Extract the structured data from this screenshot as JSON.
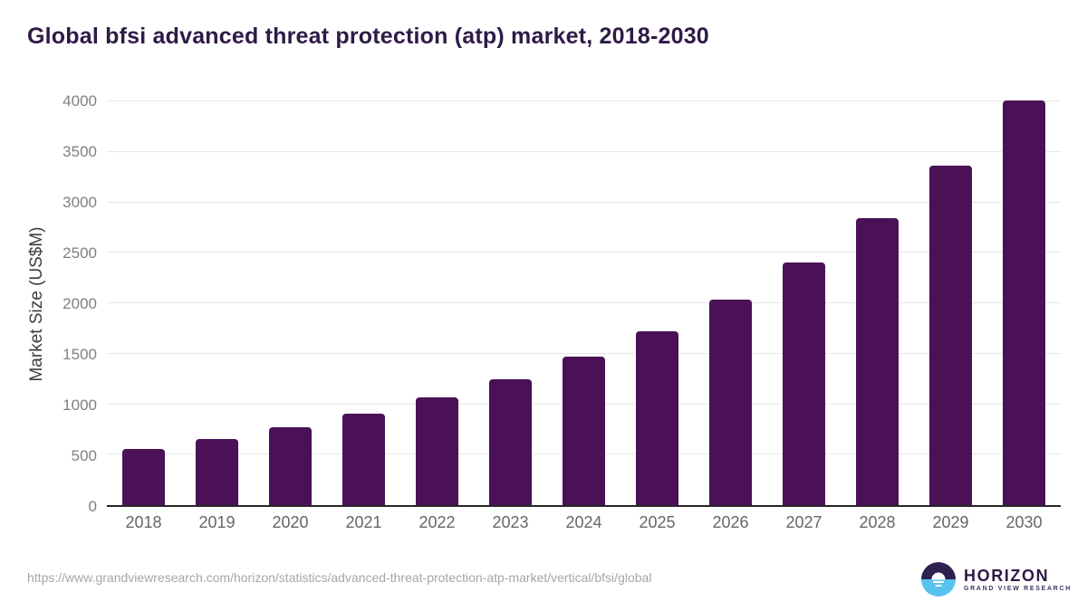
{
  "title": "Global bfsi advanced threat protection (atp) market, 2018-2030",
  "chart_data": {
    "type": "bar",
    "title": "Global bfsi advanced threat protection (atp) market, 2018-2030",
    "categories": [
      "2018",
      "2019",
      "2020",
      "2021",
      "2022",
      "2023",
      "2024",
      "2025",
      "2026",
      "2027",
      "2028",
      "2029",
      "2030"
    ],
    "values": [
      560,
      655,
      775,
      910,
      1065,
      1250,
      1470,
      1725,
      2040,
      2400,
      2840,
      3365,
      4010
    ],
    "xlabel": "",
    "ylabel": "Market Size (US$M)",
    "ylim": [
      0,
      4000
    ],
    "yticks": [
      0,
      500,
      1000,
      1500,
      2000,
      2500,
      3000,
      3500,
      4000
    ],
    "grid": "horizontal",
    "legend": "none",
    "bar_color": "#4a1157"
  },
  "footer": {
    "source_url": "https://www.grandviewresearch.com/horizon/statistics/advanced-threat-protection-atp-market/vertical/bfsi/global",
    "logo": {
      "name": "HORIZON",
      "subtitle": "GRAND VIEW RESEARCH"
    }
  },
  "colors": {
    "bar": "#4a1157",
    "title_text": "#2e1a47",
    "axis_line": "#262626",
    "gridline": "#e8e8e8",
    "y_tick_text": "#808080",
    "x_tick_text": "#666666",
    "url_text": "#a6a6a6",
    "logo_navy": "#2e2150",
    "logo_blue": "#58c1ee"
  }
}
